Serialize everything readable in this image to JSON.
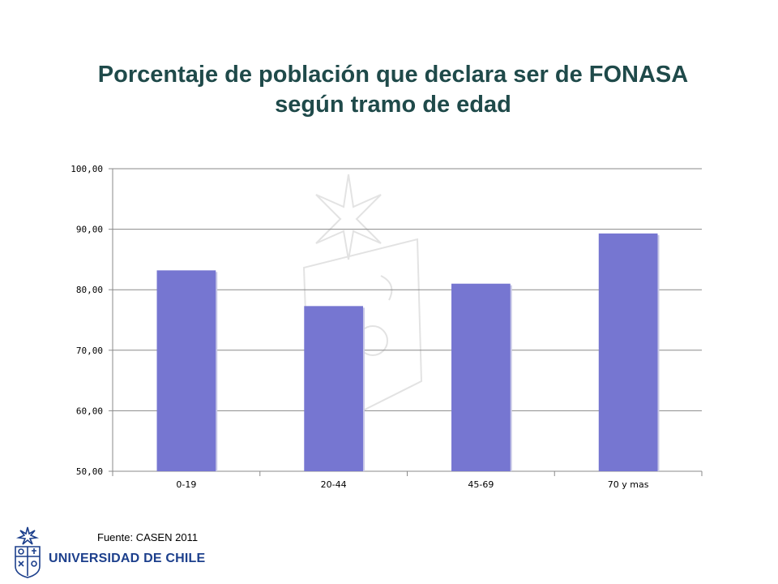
{
  "title": {
    "line1": "Porcentaje de población que declara ser de FONASA",
    "line2": "según tramo de edad"
  },
  "chart_data": {
    "type": "bar",
    "title": "Porcentaje de población que declara ser de FONASA según tramo de edad",
    "xlabel": "",
    "ylabel": "",
    "categories": [
      "0-19",
      "20-44",
      "45-69",
      "70 y mas"
    ],
    "values": [
      83.2,
      77.3,
      81.0,
      89.3
    ],
    "ylim": [
      50,
      100
    ],
    "yticks": [
      50,
      60,
      70,
      80,
      90,
      100
    ],
    "ytick_labels": [
      "50,00",
      "60,00",
      "70,00",
      "80,00",
      "90,00",
      "100,00"
    ],
    "grid": true,
    "bar_color": "#7676d1"
  },
  "source": "Fuente: CASEN 2011",
  "logo": {
    "text": "UNIVERSIDAD DE CHILE",
    "color": "#1c3f8c"
  }
}
